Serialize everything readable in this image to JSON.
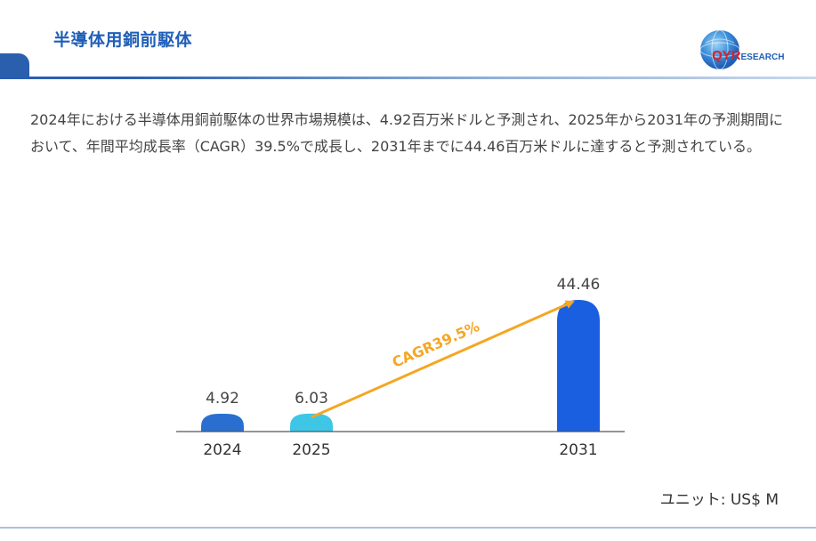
{
  "header": {
    "title": "半導体用銅前駆体",
    "logo_primary": "QYR",
    "logo_secondary": "ESEARCH"
  },
  "description": "2024年における半導体用銅前駆体の世界市場規模は、4.92百万米ドルと予測され、2025年から2031年の予測期間において、年間平均成長率（CAGR）39.5%で成長し、2031年までに44.46百万米ドルに達すると予測されている。",
  "chart_data": {
    "type": "bar",
    "categories": [
      "2024",
      "2025",
      "2031"
    ],
    "values": [
      4.92,
      6.03,
      44.46
    ],
    "value_labels": [
      "4.92",
      "6.03",
      "44.46"
    ],
    "colors": [
      "#2a6fd0",
      "#3ec6e6",
      "#1a5fe0"
    ],
    "annotation": "CAGR39.5%",
    "annotation_color": "#f5a623",
    "title": "",
    "xlabel": "",
    "ylabel": "",
    "grid": false
  },
  "unit_label": "ユニット: US$ M"
}
